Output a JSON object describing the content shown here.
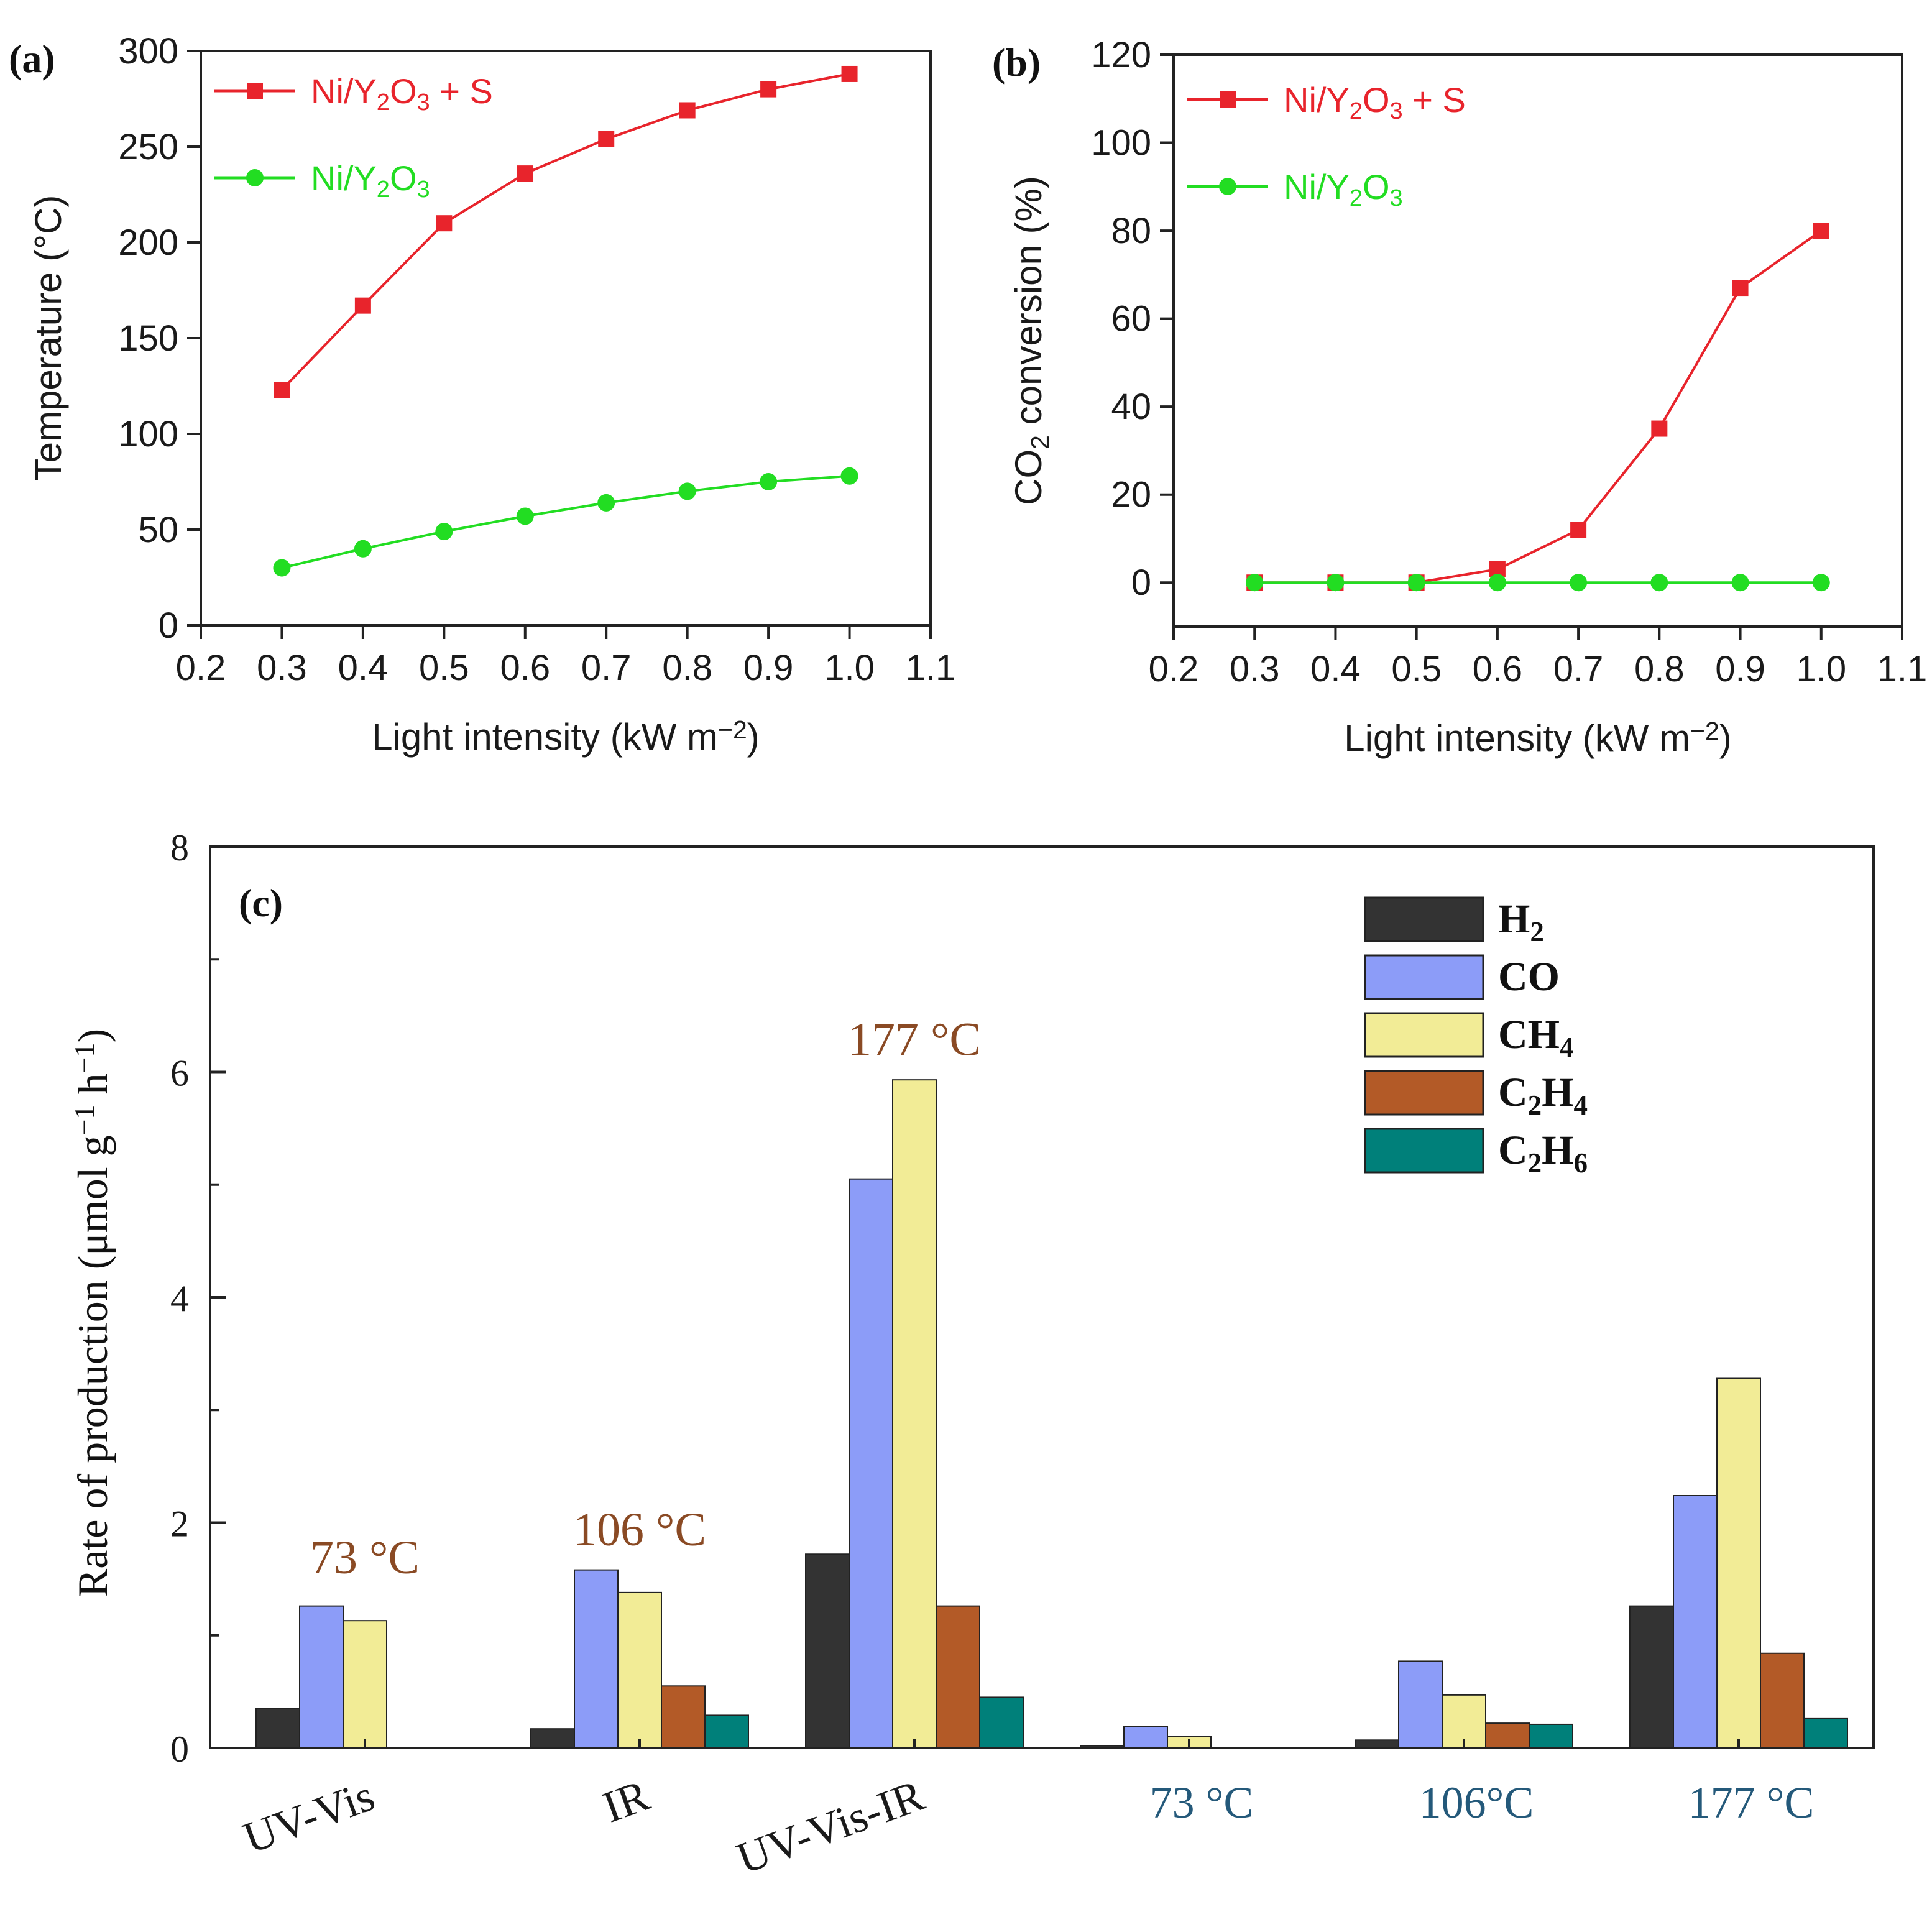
{
  "chart_data": [
    {
      "panel": "(a)",
      "type": "line",
      "title": "",
      "xlabel": "Light intensity (kW m⁻²)",
      "ylabel": "Temperature (°C)",
      "xlim": [
        0.2,
        1.1
      ],
      "ylim": [
        0,
        300
      ],
      "xticks": [
        "0.2",
        "0.3",
        "0.4",
        "0.5",
        "0.6",
        "0.7",
        "0.8",
        "0.9",
        "1.0",
        "1.1"
      ],
      "yticks": [
        "0",
        "50",
        "100",
        "150",
        "200",
        "250",
        "300"
      ],
      "legend_position": "top-left",
      "x": [
        0.3,
        0.4,
        0.5,
        0.6,
        0.7,
        0.8,
        0.9,
        1.0
      ],
      "series": [
        {
          "name": "Ni/Y₂O₃ + S",
          "color": "#e8242c",
          "marker": "square",
          "values": [
            123,
            167,
            210,
            236,
            254,
            269,
            280,
            288
          ]
        },
        {
          "name": "Ni/Y₂O₃",
          "color": "#22dd22",
          "marker": "circle",
          "values": [
            30,
            40,
            49,
            57,
            64,
            70,
            75,
            78
          ]
        }
      ]
    },
    {
      "panel": "(b)",
      "type": "line",
      "title": "",
      "xlabel": "Light intensity (kW m⁻²)",
      "ylabel": "CO₂ conversion (%)",
      "xlim": [
        0.2,
        1.1
      ],
      "ylim": [
        -10,
        120
      ],
      "xticks": [
        "0.2",
        "0.3",
        "0.4",
        "0.5",
        "0.6",
        "0.7",
        "0.8",
        "0.9",
        "1.0",
        "1.1"
      ],
      "yticks": [
        "0",
        "20",
        "40",
        "60",
        "80",
        "100",
        "120"
      ],
      "legend_position": "top-left",
      "x": [
        0.3,
        0.4,
        0.5,
        0.6,
        0.7,
        0.8,
        0.9,
        1.0
      ],
      "series": [
        {
          "name": "Ni/Y₂O₃ + S",
          "color": "#e8242c",
          "marker": "square",
          "values": [
            0,
            0,
            0,
            3,
            12,
            35,
            67,
            80
          ]
        },
        {
          "name": "Ni/Y₂O₃",
          "color": "#22dd22",
          "marker": "circle",
          "values": [
            0,
            0,
            0,
            0,
            0,
            0,
            0,
            0
          ]
        }
      ]
    },
    {
      "panel": "(c)",
      "type": "bar",
      "title": "",
      "xlabel": "",
      "ylabel": "Rate of production (μmol g⁻¹ h⁻¹)",
      "ylim": [
        0,
        8
      ],
      "yticks": [
        "0",
        "2",
        "4",
        "6",
        "8"
      ],
      "legend_position": "top-right",
      "categories": [
        "UV-Vis",
        "IR",
        "UV-Vis-IR",
        "73 °C",
        "106°C",
        "177 °C"
      ],
      "category_colors": [
        "#1a1a1a",
        "#1a1a1a",
        "#1a1a1a",
        "#24597a",
        "#24597a",
        "#24597a"
      ],
      "annotations": [
        {
          "category": "UV-Vis",
          "text": "73 °C",
          "y": 1.55
        },
        {
          "category": "IR",
          "text": "106 °C",
          "y": 1.8
        },
        {
          "category": "UV-Vis-IR",
          "text": "177 °C",
          "y": 6.15
        }
      ],
      "series": [
        {
          "name": "H₂",
          "color": "#333333",
          "values": [
            0.35,
            0.17,
            1.72,
            0.02,
            0.07,
            1.26
          ]
        },
        {
          "name": "CO",
          "color": "#8c9cf8",
          "values": [
            1.26,
            1.58,
            5.05,
            0.19,
            0.77,
            2.24
          ]
        },
        {
          "name": "CH₄",
          "color": "#f2ec96",
          "values": [
            1.13,
            1.38,
            5.93,
            0.1,
            0.47,
            3.28
          ]
        },
        {
          "name": "C₂H₄",
          "color": "#b35a27",
          "values": [
            0.0,
            0.55,
            1.26,
            0.0,
            0.22,
            0.84
          ]
        },
        {
          "name": "C₂H₆",
          "color": "#00807a",
          "values": [
            0.0,
            0.29,
            0.45,
            0.0,
            0.21,
            0.26
          ]
        }
      ]
    }
  ]
}
